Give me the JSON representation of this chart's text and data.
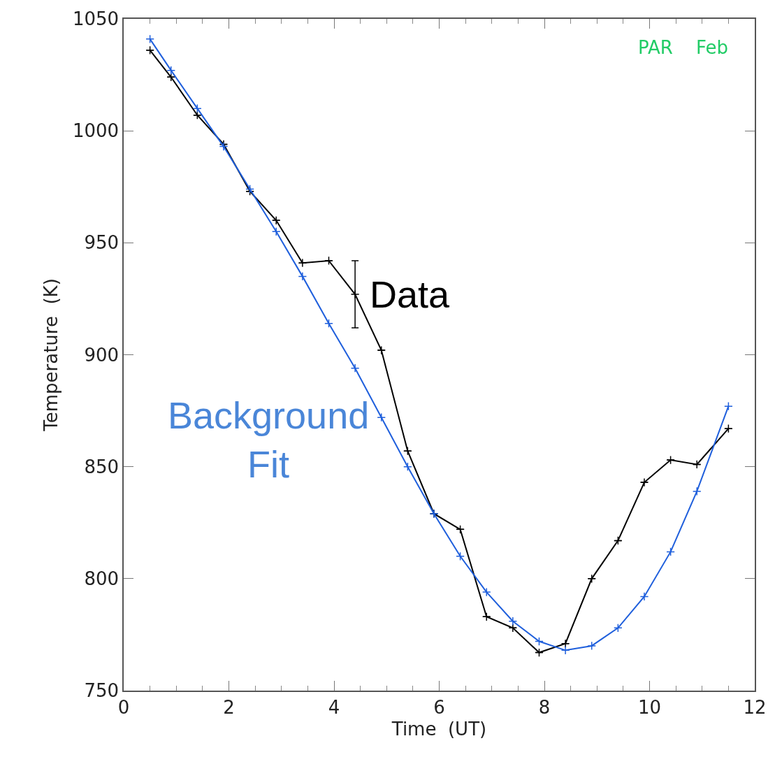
{
  "chart_data": {
    "type": "line",
    "xlabel": "Time  (UT)",
    "ylabel": "Temperature  (K)",
    "xlim": [
      0,
      12
    ],
    "xticks": [
      0,
      2,
      4,
      6,
      8,
      10,
      12
    ],
    "ylim": [
      750,
      1050
    ],
    "yticks": [
      750,
      800,
      850,
      900,
      950,
      1000,
      1050
    ],
    "marker": "cross",
    "line_style": "solid",
    "x": [
      0.5,
      0.9,
      1.4,
      1.9,
      2.4,
      2.9,
      3.4,
      3.9,
      4.4,
      4.9,
      5.4,
      5.9,
      6.4,
      6.9,
      7.4,
      7.9,
      8.4,
      8.9,
      9.4,
      9.9,
      10.4,
      10.9,
      11.5
    ],
    "series": [
      {
        "color": "#000000",
        "values": [
          1036,
          1024,
          1007,
          994,
          973,
          960,
          941,
          942,
          927,
          902,
          857,
          829,
          822,
          783,
          778,
          767,
          771,
          800,
          817,
          843,
          853,
          851,
          867
        ],
        "errors": [
          null,
          null,
          null,
          null,
          null,
          null,
          null,
          null,
          [
            912,
            942
          ],
          null,
          null,
          null,
          null,
          null,
          null,
          null,
          null,
          null,
          null,
          null,
          null,
          null,
          null
        ]
      },
      {
        "color": "#1f5fdc",
        "values": [
          1041,
          1027,
          1010,
          993,
          974,
          955,
          935,
          914,
          894,
          872,
          850,
          829,
          810,
          794,
          781,
          772,
          768,
          770,
          778,
          792,
          812,
          839,
          877
        ]
      }
    ],
    "annotations": [
      "Data",
      "Background\nFit",
      "PAR    Feb"
    ]
  }
}
